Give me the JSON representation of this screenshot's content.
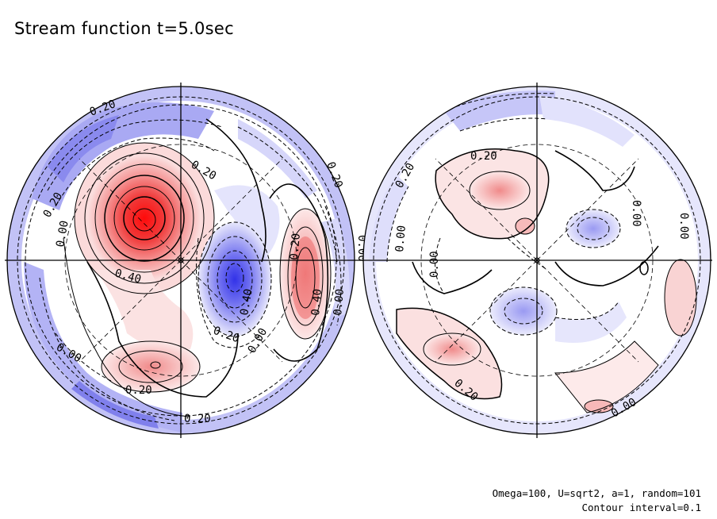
{
  "title": "Stream function t=5.0sec",
  "footer": {
    "params": "Omega=100, U=sqrt2, a=1, random=101",
    "interval": "Contour interval=0.1"
  },
  "colors": {
    "positive": "#e8191e",
    "negative": "#3c3ce6",
    "background": "#ffffff",
    "line": "#000000"
  },
  "hemispheres": [
    {
      "name": "left",
      "labels": [
        "0.20",
        "0.00",
        "0.20",
        "0.20",
        "0.40",
        "0.40",
        "0.20",
        "0.20",
        "0.40",
        "0.00",
        "0.00",
        "0.20",
        "0.00",
        "0.20",
        "0.20",
        "0.00"
      ]
    },
    {
      "name": "right",
      "labels": [
        "0.20",
        "0.20",
        "0.00",
        "0.00",
        "0.00",
        "0.00",
        "0.20",
        "0.00"
      ]
    }
  ]
}
